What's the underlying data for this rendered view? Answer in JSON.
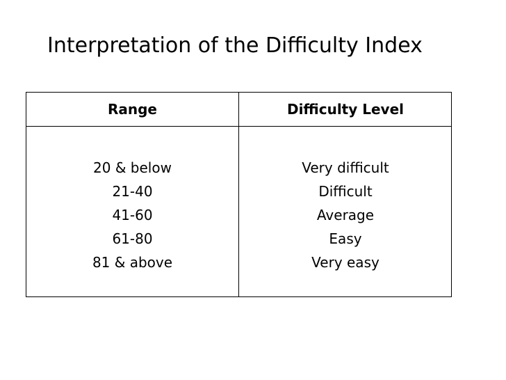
{
  "slide": {
    "title": "Interpretation of the Difficulty Index"
  },
  "table": {
    "headers": {
      "range": "Range",
      "difficulty_level": "Difficulty Level"
    },
    "rows": [
      {
        "range": "20 & below",
        "level": "Very difficult"
      },
      {
        "range": "21-40",
        "level": "Difficult"
      },
      {
        "range": "41-60",
        "level": "Average"
      },
      {
        "range": "61-80",
        "level": "Easy"
      },
      {
        "range": "81 & above",
        "level": "Very easy"
      }
    ]
  }
}
